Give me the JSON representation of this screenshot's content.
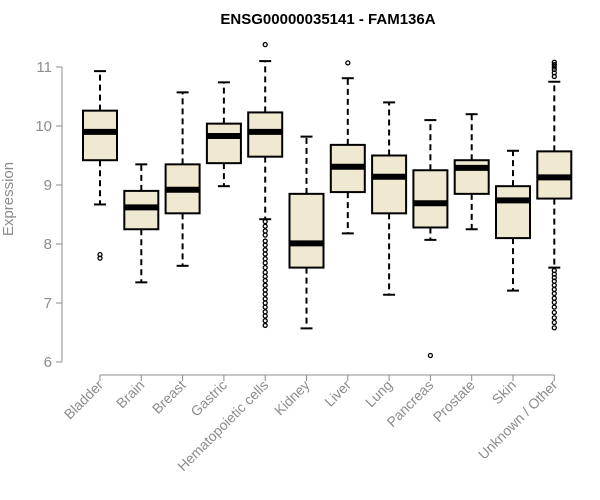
{
  "chart_data": {
    "type": "boxplot",
    "title": "ENSG00000035141 - FAM136A",
    "xlabel": "",
    "ylabel": "Expression",
    "ylim": [
      6,
      11
    ],
    "yticks": [
      "6",
      "7",
      "8",
      "9",
      "10",
      "11"
    ],
    "grid": false,
    "colors": {
      "box_fill": "#efe9d2",
      "box_stroke": "#000000",
      "median": "#000000",
      "axis": "#8c8c8c"
    },
    "categories": [
      "Bladder",
      "Brain",
      "Breast",
      "Gastric",
      "Hematopoietic cells",
      "Kidney",
      "Liver",
      "Lung",
      "Pancreas",
      "Prostate",
      "Skin",
      "Unknown / Other"
    ],
    "series": [
      {
        "category": "Bladder",
        "whisker_low": 8.67,
        "q1": 9.42,
        "median": 9.9,
        "q3": 10.26,
        "whisker_high": 10.93,
        "outliers": [
          7.76,
          7.82
        ]
      },
      {
        "category": "Brain",
        "whisker_low": 7.35,
        "q1": 8.25,
        "median": 8.62,
        "q3": 8.9,
        "whisker_high": 9.35,
        "outliers": []
      },
      {
        "category": "Breast",
        "whisker_low": 7.63,
        "q1": 8.52,
        "median": 8.92,
        "q3": 9.35,
        "whisker_high": 10.57,
        "outliers": []
      },
      {
        "category": "Gastric",
        "whisker_low": 8.98,
        "q1": 9.37,
        "median": 9.83,
        "q3": 10.04,
        "whisker_high": 10.74,
        "outliers": []
      },
      {
        "category": "Hematopoietic cells",
        "whisker_low": 8.42,
        "q1": 9.48,
        "median": 9.9,
        "q3": 10.23,
        "whisker_high": 11.1,
        "outliers": [
          11.38,
          8.38,
          8.3,
          8.22,
          8.15,
          8.05,
          7.98,
          7.9,
          7.83,
          7.75,
          7.68,
          7.6,
          7.52,
          7.45,
          7.38,
          7.3,
          7.22,
          7.15,
          7.07,
          7.0,
          6.93,
          6.85,
          6.78,
          6.7,
          6.62
        ]
      },
      {
        "category": "Kidney",
        "whisker_low": 6.57,
        "q1": 7.6,
        "median": 8.01,
        "q3": 8.85,
        "whisker_high": 9.82,
        "outliers": []
      },
      {
        "category": "Liver",
        "whisker_low": 8.18,
        "q1": 8.88,
        "median": 9.31,
        "q3": 9.68,
        "whisker_high": 10.81,
        "outliers": [
          11.07
        ]
      },
      {
        "category": "Lung",
        "whisker_low": 7.14,
        "q1": 8.52,
        "median": 9.14,
        "q3": 9.5,
        "whisker_high": 10.4,
        "outliers": []
      },
      {
        "category": "Pancreas",
        "whisker_low": 8.07,
        "q1": 8.28,
        "median": 8.69,
        "q3": 9.25,
        "whisker_high": 10.1,
        "outliers": [
          6.11
        ]
      },
      {
        "category": "Prostate",
        "whisker_low": 8.25,
        "q1": 8.85,
        "median": 9.29,
        "q3": 9.42,
        "whisker_high": 10.2,
        "outliers": []
      },
      {
        "category": "Skin",
        "whisker_low": 7.21,
        "q1": 8.1,
        "median": 8.74,
        "q3": 8.98,
        "whisker_high": 9.58,
        "outliers": []
      },
      {
        "category": "Unknown / Other",
        "whisker_low": 7.6,
        "q1": 8.77,
        "median": 9.13,
        "q3": 9.57,
        "whisker_high": 10.75,
        "outliers": [
          11.08,
          11.04,
          11.0,
          10.96,
          10.9,
          10.84,
          7.55,
          7.49,
          7.43,
          7.37,
          7.3,
          7.23,
          7.16,
          7.08,
          7.01,
          6.93,
          6.84,
          6.75,
          6.67,
          6.58
        ]
      }
    ]
  }
}
